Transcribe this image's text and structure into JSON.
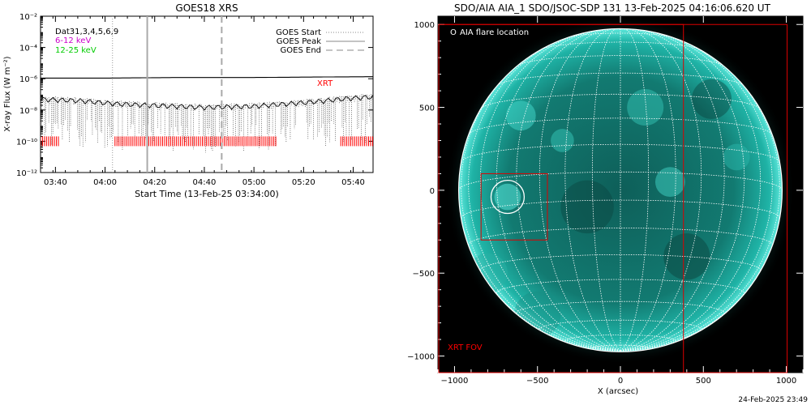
{
  "goes_panel": {
    "title": "GOES18 XRS",
    "ylabel": "X-ray Flux (W m⁻²)",
    "xlabel": "Start Time (13-Feb-25 03:34:00)",
    "legend_left": [
      {
        "label": "Dat31,3,4,5,6,9",
        "color": "#000000"
      },
      {
        "label": "6-12 keV",
        "color": "#cc00cc"
      },
      {
        "label": "12-25 keV",
        "color": "#00cc00"
      }
    ],
    "legend_right": [
      {
        "label": "GOES Start",
        "style": "dotted"
      },
      {
        "label": "GOES Peak",
        "style": "solid"
      },
      {
        "label": "GOES End",
        "style": "dashed"
      }
    ],
    "xrt_label": "XRT",
    "colors": {
      "xrt": "#ff0000",
      "marker_gray": "#aaaaaa",
      "curve": "#000000"
    }
  },
  "sun_panel": {
    "title": "SDO/AIA AIA_1 SDO/JSOC-SDP 131 13-Feb-2025 04:16:06.620 UT",
    "legend": "AIA flare location",
    "legend_symbol": "O",
    "fov_label": "XRT FOV",
    "xlabel": "X (arcsec)",
    "colors": {
      "disk": "#1aa59a",
      "fov": "#dd0000",
      "grid": "#ffffff"
    }
  },
  "footer": {
    "timestamp": "24-Feb-2025 23:49"
  },
  "chart_data": [
    {
      "type": "line",
      "title": "GOES18 XRS",
      "xlabel": "Start Time (13-Feb-25 03:34:00)",
      "ylabel": "X-ray Flux (W m⁻²)",
      "xlim": [
        "03:34",
        "05:48"
      ],
      "ylim": [
        1e-12,
        0.01
      ],
      "yscale": "log",
      "xticks": [
        "03:40",
        "04:00",
        "04:20",
        "04:40",
        "05:00",
        "05:20",
        "05:40"
      ],
      "yticks": [
        "10⁻¹²",
        "10⁻¹⁰",
        "10⁻⁸",
        "10⁻⁶",
        "10⁻⁴",
        "10⁻²"
      ],
      "series": [
        {
          "name": "6-12 keV",
          "x": [
            "03:34",
            "04:00",
            "04:30",
            "05:00",
            "05:30",
            "05:48"
          ],
          "y": [
            1.1e-06,
            1.1e-06,
            1.2e-06,
            1.2e-06,
            1.3e-06,
            1.35e-06
          ]
        },
        {
          "name": "12-25 keV",
          "x": [
            "03:34",
            "03:50",
            "04:05",
            "04:20",
            "04:40",
            "05:00",
            "05:20",
            "05:40",
            "05:48"
          ],
          "y": [
            5e-08,
            4e-08,
            2.5e-08,
            2e-08,
            1.5e-08,
            1.8e-08,
            3e-08,
            6e-08,
            7e-08
          ]
        }
      ],
      "goes_start": "04:03",
      "goes_peak": "04:17",
      "goes_end": "04:47",
      "xrt_coverage": [
        [
          "03:34",
          "03:42"
        ],
        [
          "04:04",
          "05:09"
        ],
        [
          "05:35",
          "05:48"
        ]
      ],
      "xrt_level": 1e-10,
      "grid": false,
      "legend_position": "top-right"
    },
    {
      "type": "image",
      "title": "SDO/AIA AIA_1 SDO/JSOC-SDP 131 13-Feb-2025 04:16:06.620 UT",
      "xlabel": "X (arcsec)",
      "xlim": [
        -1100,
        1100
      ],
      "ylim": [
        -1100,
        1050
      ],
      "xticks": [
        -1000,
        -500,
        0,
        500,
        1000
      ],
      "yticks": [
        -1000,
        -500,
        0,
        500,
        1000
      ],
      "solar_radius_arcsec": 975,
      "xrt_fov_box": {
        "x": [
          -1100,
          380
        ],
        "y": [
          -1100,
          1000
        ]
      },
      "inner_box": {
        "x": [
          -840,
          -440
        ],
        "y": [
          -300,
          100
        ]
      },
      "flare_location": {
        "x": -680,
        "y": -40,
        "radius": 100
      },
      "grid_spacing_deg": 10
    }
  ]
}
